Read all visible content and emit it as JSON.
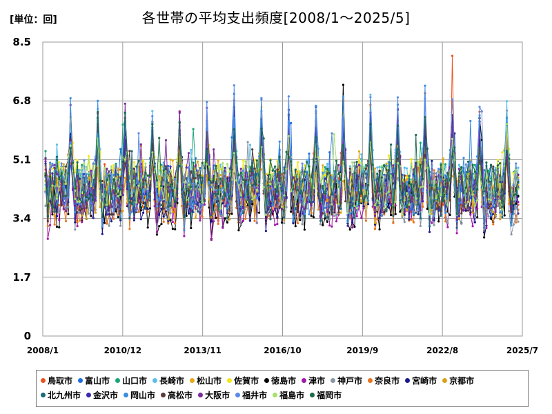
{
  "header": {
    "unit_label": "[単位：回]",
    "title": "各世帯の平均支出頻度[2008/1～2025/5]"
  },
  "chart_data": {
    "type": "line",
    "y_ticks": [
      "0",
      "1.7",
      "3.4",
      "5.1",
      "6.8",
      "8.5"
    ],
    "ylim": [
      0,
      8.5
    ],
    "x_ticks": [
      "2008/1",
      "2010/12",
      "2013/11",
      "2016/10",
      "2019/9",
      "2022/8",
      "2025/7"
    ],
    "x_start": "2008/1",
    "x_end": "2025/7",
    "grid": true,
    "legend_position": "bottom",
    "series": [
      {
        "name": "鳥取市",
        "color": "#e8541e"
      },
      {
        "name": "富山市",
        "color": "#1f6fe0"
      },
      {
        "name": "山口市",
        "color": "#1aa57a"
      },
      {
        "name": "長崎市",
        "color": "#5bbfea"
      },
      {
        "name": "松山市",
        "color": "#e6a817"
      },
      {
        "name": "佐賀市",
        "color": "#f2e81c"
      },
      {
        "name": "徳島市",
        "color": "#000000"
      },
      {
        "name": "津市",
        "color": "#a01aa8"
      },
      {
        "name": "神戸市",
        "color": "#8895a3"
      },
      {
        "name": "奈良市",
        "color": "#e8741e"
      },
      {
        "name": "宮崎市",
        "color": "#1a1a8c"
      },
      {
        "name": "京都市",
        "color": "#d9a21a"
      },
      {
        "name": "北九州市",
        "color": "#1a6a7a"
      },
      {
        "name": "金沢市",
        "color": "#3a2aa8"
      },
      {
        "name": "岡山市",
        "color": "#3a8ee0"
      },
      {
        "name": "高松市",
        "color": "#5a3a3a"
      },
      {
        "name": "大阪市",
        "color": "#7a2a9a"
      },
      {
        "name": "福井市",
        "color": "#5a8ae8"
      },
      {
        "name": "福島市",
        "color": "#a8e070"
      },
      {
        "name": "福岡市",
        "color": "#1a6a4a"
      }
    ]
  }
}
